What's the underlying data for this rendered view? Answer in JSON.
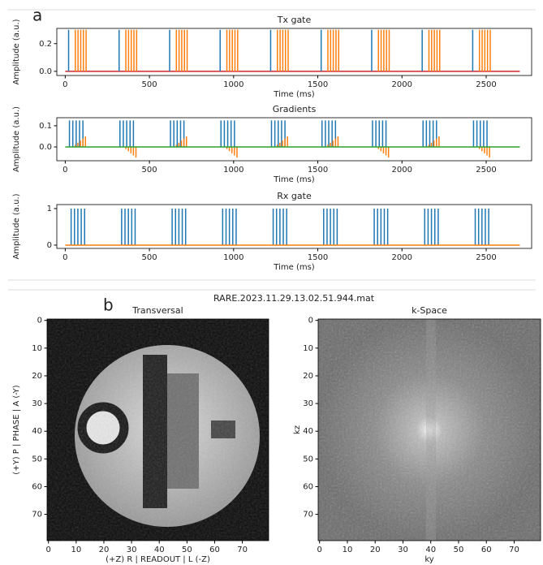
{
  "panel_labels": [
    "a",
    "b"
  ],
  "figure_title": "RARE.2023.11.29.13.02.51.944.mat",
  "chart_data": [
    {
      "type": "stem",
      "title": "Tx gate",
      "xlabel": "Time (ms)",
      "ylabel": "Amplitude (a.u.)",
      "xlim": [
        -50,
        2770
      ],
      "ylim": [
        -0.03,
        0.31
      ],
      "xticks": [
        0,
        500,
        1000,
        1500,
        2000,
        2500
      ],
      "yticks": [
        {
          "value": 0,
          "label": "0.0"
        },
        {
          "value": 0.2,
          "label": "0.2"
        }
      ],
      "series": [
        {
          "type": "line",
          "color": "#d62728",
          "x": [
            0,
            2700
          ],
          "values": [
            0,
            0
          ]
        },
        {
          "color": "#1f77b4",
          "x": [
            20,
            320,
            620,
            920,
            1220,
            1520,
            1820,
            2120,
            2420
          ],
          "values": [
            0.3,
            0.3,
            0.3,
            0.3,
            0.3,
            0.3,
            0.3,
            0.3,
            0.3
          ]
        },
        {
          "color": "#ff7f0e",
          "x": [
            60,
            76,
            92,
            108,
            124,
            360,
            376,
            392,
            408,
            424,
            660,
            676,
            692,
            708,
            724,
            960,
            976,
            992,
            1008,
            1024,
            1260,
            1276,
            1292,
            1308,
            1324,
            1560,
            1576,
            1592,
            1608,
            1624,
            1860,
            1876,
            1892,
            1908,
            1924,
            2160,
            2176,
            2192,
            2208,
            2224,
            2460,
            2476,
            2492,
            2508,
            2524
          ],
          "values": [
            0.3,
            0.3,
            0.3,
            0.3,
            0.3,
            0.3,
            0.3,
            0.3,
            0.3,
            0.3,
            0.3,
            0.3,
            0.3,
            0.3,
            0.3,
            0.3,
            0.3,
            0.3,
            0.3,
            0.3,
            0.3,
            0.3,
            0.3,
            0.3,
            0.3,
            0.3,
            0.3,
            0.3,
            0.3,
            0.3,
            0.3,
            0.3,
            0.3,
            0.3,
            0.3,
            0.3,
            0.3,
            0.3,
            0.3,
            0.3,
            0.3,
            0.3,
            0.3,
            0.3,
            0.3
          ]
        }
      ]
    },
    {
      "type": "stem",
      "title": "Gradients",
      "xlabel": "Time (ms)",
      "ylabel": "Amplitude (a.u.)",
      "xlim": [
        -50,
        2770
      ],
      "ylim": [
        -0.065,
        0.138
      ],
      "xticks": [
        0,
        500,
        1000,
        1500,
        2000,
        2500
      ],
      "yticks": [
        {
          "value": 0,
          "label": "0.0"
        },
        {
          "value": 0.1,
          "label": "0.1"
        }
      ],
      "series": [
        {
          "color": "#1f77b4",
          "x": [
            25,
            45,
            65,
            85,
            105,
            325,
            345,
            365,
            385,
            405,
            625,
            645,
            665,
            685,
            705,
            925,
            945,
            965,
            985,
            1005,
            1225,
            1245,
            1265,
            1285,
            1305,
            1525,
            1545,
            1565,
            1585,
            1605,
            1825,
            1845,
            1865,
            1885,
            1905,
            2125,
            2145,
            2165,
            2185,
            2205,
            2425,
            2445,
            2465,
            2485,
            2505
          ],
          "values": [
            0.125,
            0.125,
            0.125,
            0.125,
            0.125,
            0.125,
            0.125,
            0.125,
            0.125,
            0.125,
            0.125,
            0.125,
            0.125,
            0.125,
            0.125,
            0.125,
            0.125,
            0.125,
            0.125,
            0.125,
            0.125,
            0.125,
            0.125,
            0.125,
            0.125,
            0.125,
            0.125,
            0.125,
            0.125,
            0.125,
            0.125,
            0.125,
            0.125,
            0.125,
            0.125,
            0.125,
            0.125,
            0.125,
            0.125,
            0.125,
            0.125,
            0.125,
            0.125,
            0.125,
            0.125
          ]
        },
        {
          "color": "#ff7f0e",
          "x": [
            60,
            75,
            90,
            105,
            120,
            360,
            375,
            390,
            405,
            420,
            660,
            675,
            690,
            705,
            720,
            960,
            975,
            990,
            1005,
            1020,
            1260,
            1275,
            1290,
            1305,
            1320,
            1560,
            1575,
            1590,
            1605,
            1620,
            1860,
            1875,
            1890,
            1905,
            1920,
            2160,
            2175,
            2190,
            2205,
            2220,
            2460,
            2475,
            2490,
            2505,
            2520
          ],
          "values": [
            0.01,
            0.02,
            0.03,
            0.04,
            0.05,
            -0.01,
            -0.02,
            -0.03,
            -0.04,
            -0.05,
            0.01,
            0.02,
            0.03,
            0.04,
            0.05,
            -0.01,
            -0.02,
            -0.03,
            -0.04,
            -0.05,
            0.01,
            0.02,
            0.03,
            0.04,
            0.05,
            0.01,
            0.02,
            0.03,
            0.04,
            0.05,
            -0.01,
            -0.02,
            -0.03,
            -0.04,
            -0.05,
            0.01,
            0.02,
            0.03,
            0.04,
            0.05,
            -0.01,
            -0.02,
            -0.03,
            -0.04,
            -0.05
          ]
        },
        {
          "type": "line",
          "color": "#2ca02c",
          "x": [
            0,
            2700
          ],
          "values": [
            0,
            0
          ]
        }
      ]
    },
    {
      "type": "stem",
      "title": "Rx gate",
      "xlabel": "Time (ms)",
      "ylabel": "Amplitude (a.u.)",
      "xlim": [
        -50,
        2770
      ],
      "ylim": [
        -0.09,
        1.11
      ],
      "xticks": [
        0,
        500,
        1000,
        1500,
        2000,
        2500
      ],
      "yticks": [
        0,
        1
      ],
      "series": [
        {
          "color": "#1f77b4",
          "x": [
            35,
            55,
            75,
            95,
            115,
            335,
            355,
            375,
            395,
            415,
            635,
            655,
            675,
            695,
            715,
            935,
            955,
            975,
            995,
            1015,
            1235,
            1255,
            1275,
            1295,
            1315,
            1535,
            1555,
            1575,
            1595,
            1615,
            1835,
            1855,
            1875,
            1895,
            1915,
            2135,
            2155,
            2175,
            2195,
            2215,
            2435,
            2455,
            2475,
            2495,
            2515
          ],
          "values": [
            1,
            1,
            1,
            1,
            1,
            1,
            1,
            1,
            1,
            1,
            1,
            1,
            1,
            1,
            1,
            1,
            1,
            1,
            1,
            1,
            1,
            1,
            1,
            1,
            1,
            1,
            1,
            1,
            1,
            1,
            1,
            1,
            1,
            1,
            1,
            1,
            1,
            1,
            1,
            1,
            1,
            1,
            1,
            1,
            1
          ]
        },
        {
          "type": "line",
          "color": "#ff7f0e",
          "x": [
            0,
            2700
          ],
          "values": [
            0,
            0
          ]
        }
      ]
    },
    {
      "type": "image",
      "title": "Transversal",
      "xlabel": "(+Z) R | READOUT | L (-Z)",
      "ylabel": "(+Y) P | PHASE | A (-Y)",
      "xlim": [
        -0.5,
        79.5
      ],
      "ylim": [
        79.5,
        -0.5
      ],
      "xticks": [
        0,
        10,
        20,
        30,
        40,
        50,
        60,
        70
      ],
      "yticks": [
        0,
        10,
        20,
        30,
        40,
        50,
        60,
        70
      ]
    },
    {
      "type": "image",
      "title": "k-Space",
      "xlabel": "ky",
      "ylabel": "kz",
      "xlim": [
        -0.5,
        79.5
      ],
      "ylim": [
        79.5,
        -0.5
      ],
      "xticks": [
        0,
        10,
        20,
        30,
        40,
        50,
        60,
        70
      ],
      "yticks": [
        0,
        10,
        20,
        30,
        40,
        50,
        60,
        70
      ]
    }
  ]
}
